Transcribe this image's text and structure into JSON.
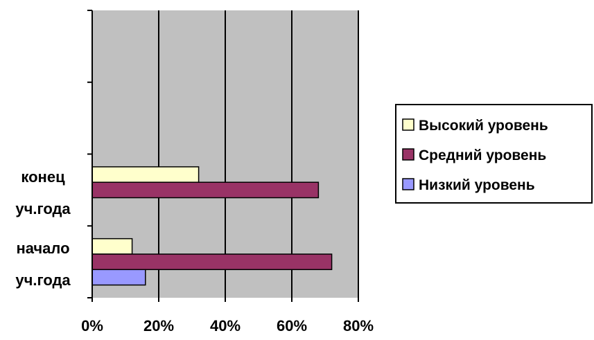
{
  "chart_data": {
    "type": "bar",
    "orientation": "horizontal",
    "categories": [
      "начало уч.года",
      "конец уч.года"
    ],
    "category_lines": [
      [
        "начало",
        "уч.года"
      ],
      [
        "конец",
        "уч.года"
      ]
    ],
    "series": [
      {
        "name": "Высокий уровень",
        "values": [
          12,
          32
        ],
        "color": "#FFFFCC"
      },
      {
        "name": "Средний уровень",
        "values": [
          72,
          68
        ],
        "color": "#993366"
      },
      {
        "name": "Низкий уровень",
        "values": [
          16,
          0
        ],
        "color": "#9999FF"
      }
    ],
    "xlim": [
      0,
      80
    ],
    "xticks": [
      "0%",
      "20%",
      "40%",
      "60%",
      "80%"
    ],
    "plot_background": "#C0C0C0",
    "grid": true,
    "legend_position": "right"
  }
}
